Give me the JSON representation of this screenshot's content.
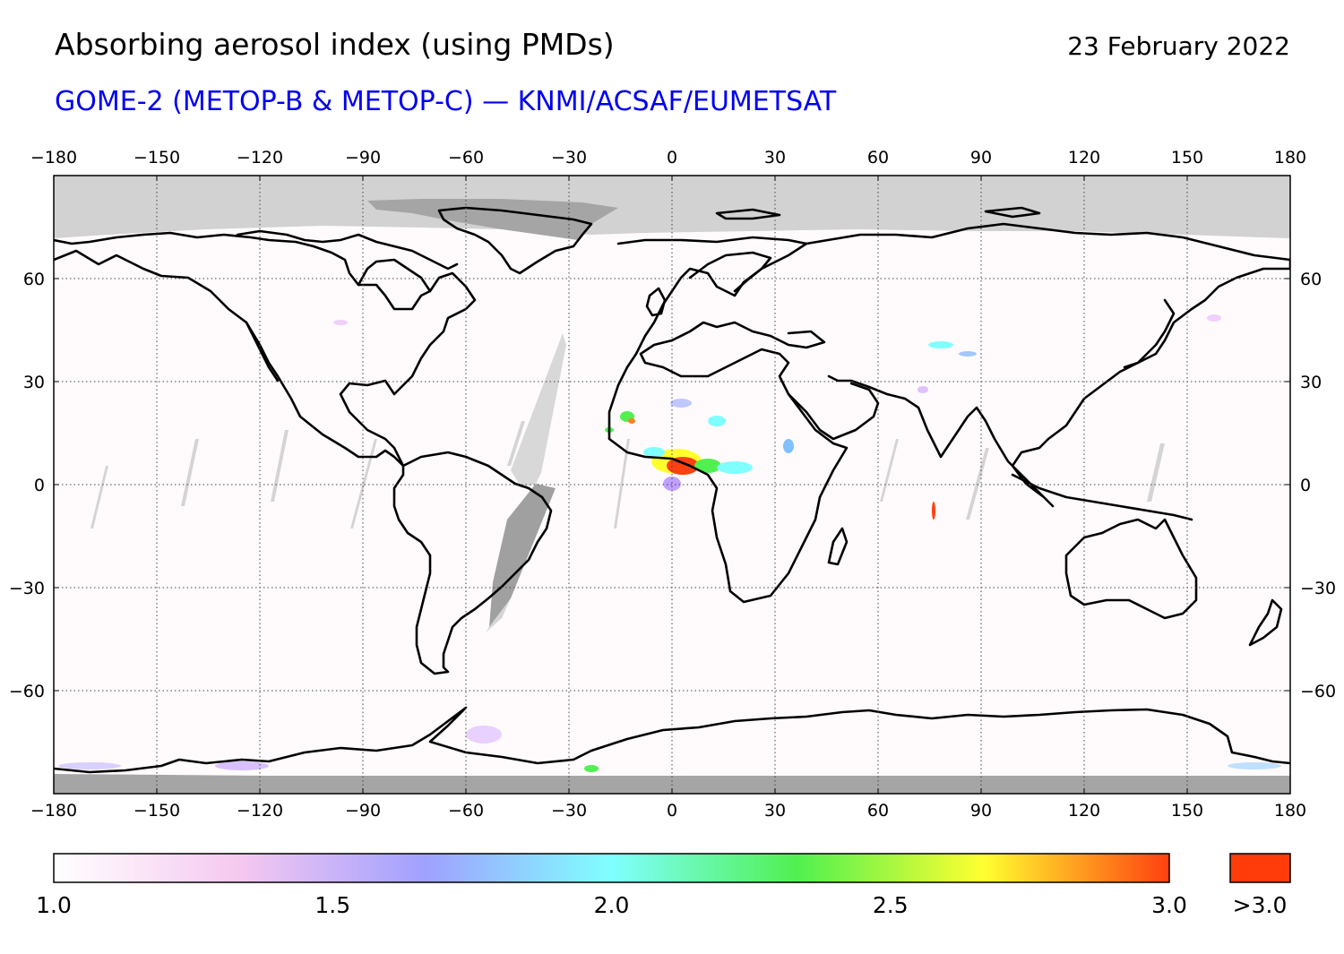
{
  "header": {
    "title": "Absorbing aerosol index (using PMDs)",
    "date": "23 February 2022",
    "subtitle": "GOME-2 (METOP-B & METOP-C) — KNMI/ACSAF/EUMETSAT"
  },
  "axes": {
    "lon_ticks": [
      "−180",
      "−150",
      "−120",
      "−90",
      "−60",
      "−30",
      "0",
      "30",
      "60",
      "90",
      "120",
      "150",
      "180"
    ],
    "lon_values": [
      -180,
      -150,
      -120,
      -90,
      -60,
      -30,
      0,
      30,
      60,
      90,
      120,
      150,
      180
    ],
    "lat_ticks": [
      "60",
      "30",
      "0",
      "−30",
      "−60"
    ],
    "lat_values": [
      60,
      30,
      0,
      -30,
      -60
    ],
    "lon_range": [
      -180,
      180
    ],
    "lat_range": [
      -90,
      90
    ],
    "grid": true
  },
  "colorbar": {
    "labels": [
      "1.0",
      "1.5",
      "2.0",
      "2.5",
      "3.0"
    ],
    "values": [
      1.0,
      1.5,
      2.0,
      2.5,
      3.0
    ],
    "range": [
      1.0,
      3.0
    ],
    "overflow_label": ">3.0",
    "colors": [
      "#ffffff",
      "#f5c8f0",
      "#a0a0ff",
      "#80ffff",
      "#50f050",
      "#ffff30",
      "#ff4010"
    ],
    "overflow_color": "#ff3c0a"
  },
  "colors": {
    "no_data_light": "#d2d2d2",
    "no_data_dark": "#a5a5a5",
    "coastline": "#000000"
  }
}
